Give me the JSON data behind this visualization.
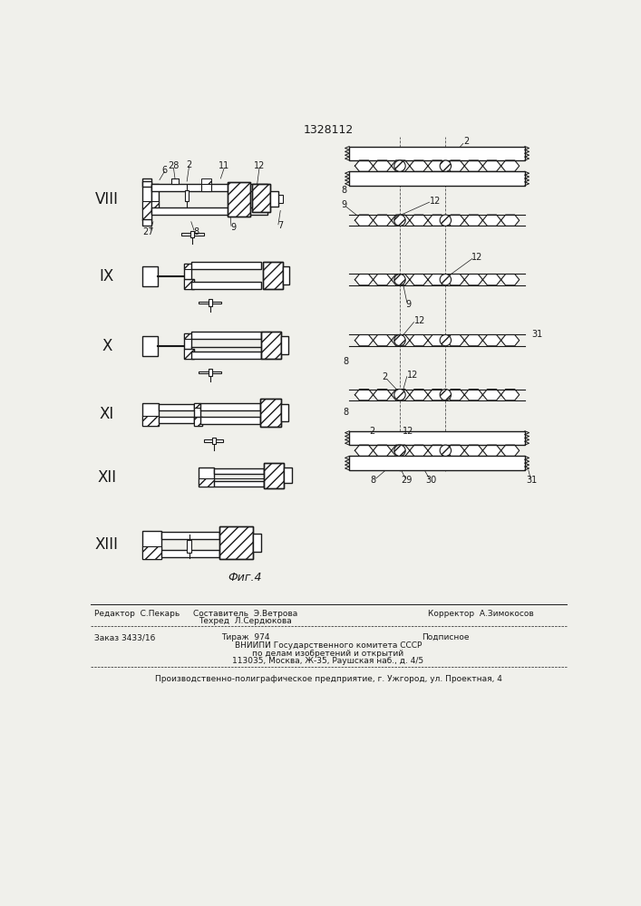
{
  "patent_number": "1328112",
  "fig_label": "Фиг.4",
  "bg": "#f0f0eb",
  "lc": "#1a1a1a",
  "footer": {
    "line1_left": "Редактор  С.Пекарь",
    "line1_mid": "Составитель  Э.Ветрова",
    "line1_mid2": "Техред  Л.Сердюкова",
    "line1_right": "Корректор  А.Зимокосов",
    "line2_left": "Заказ 3433/16",
    "line2_mid": "Тираж  974",
    "line2_right": "Подписное",
    "line3": "ВНИИПИ Государственного комитета СССР",
    "line4": "по делам изобретений и открытий",
    "line5": "113035, Москва, Ж-35, Раушская наб., д. 4/5",
    "line6": "Производственно-полиграфическое предприятие, г. Ужгород, ул. Проектная, 4"
  }
}
